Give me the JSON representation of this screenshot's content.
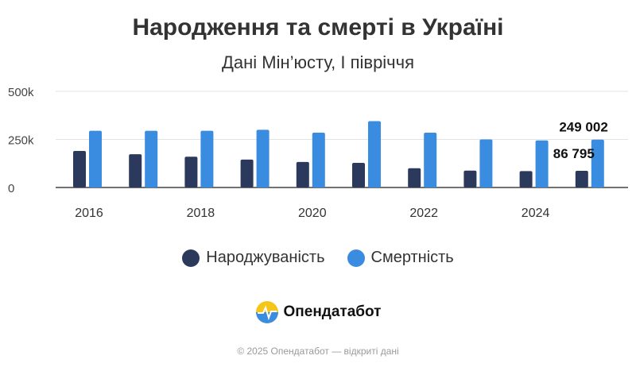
{
  "chart_data": {
    "type": "bar",
    "title": "Народження та смерті в Україні",
    "subtitle": "Дані Мін’юсту, І півріччя",
    "categories": [
      "2016",
      "2017",
      "2018",
      "2019",
      "2020",
      "2021",
      "2022",
      "2023",
      "2024",
      "2025"
    ],
    "x_tick_labels": [
      "2016",
      "2018",
      "2020",
      "2022",
      "2024"
    ],
    "y_tick_labels": [
      "500k",
      "250k",
      "0"
    ],
    "y_ticks": [
      500000,
      250000,
      0
    ],
    "ylim": [
      0,
      500000
    ],
    "grid": true,
    "legend_position": "bottom",
    "series": [
      {
        "name": "Народжуваність",
        "color": "#2b3a5c",
        "values": [
          190000,
          173000,
          160000,
          145000,
          133000,
          128000,
          100000,
          88000,
          85000,
          86795
        ]
      },
      {
        "name": "Смертність",
        "color": "#3a8ce0",
        "values": [
          295000,
          295000,
          295000,
          300000,
          285000,
          345000,
          285000,
          250000,
          245000,
          249002
        ]
      }
    ],
    "annotations": [
      {
        "text": "249 002",
        "series": "Смертність",
        "category": "2025"
      },
      {
        "text": "86 795",
        "series": "Народжуваність",
        "category": "2025"
      }
    ]
  },
  "brand": {
    "name": "Опендатабот"
  },
  "footer": {
    "text": "© 2025 Опендатабот — відкриті дані"
  }
}
